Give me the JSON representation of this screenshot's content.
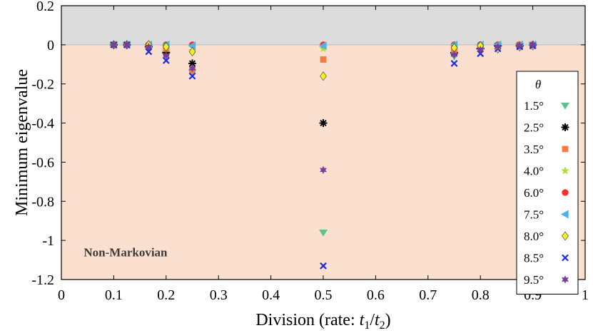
{
  "chart_data": {
    "type": "scatter",
    "title": "",
    "xlabel": "Division (rate: t₁/t₂)",
    "xlabel_parts": {
      "prefix": "Division (rate: ",
      "t": "t",
      "sub1": "1",
      "slash": "/",
      "sub2": "2",
      "suffix": ")"
    },
    "ylabel": "Minimum eigenvalue",
    "xlim": [
      0,
      1
    ],
    "ylim": [
      -1.2,
      0.2
    ],
    "xticks": [
      0,
      0.1,
      0.2,
      0.3,
      0.4,
      0.5,
      0.6,
      0.7,
      0.8,
      0.9,
      1
    ],
    "xtick_labels": [
      "0",
      "0.1",
      "0.2",
      "0.3",
      "0.4",
      "0.5",
      "0.6",
      "0.7",
      "0.8",
      "0.9",
      "1"
    ],
    "yticks": [
      0.2,
      0,
      -0.2,
      -0.4,
      -0.6,
      -0.8,
      -1,
      -1.2
    ],
    "ytick_labels": [
      "0.2",
      "0",
      "-0.2",
      "-0.4",
      "-0.6",
      "-0.8",
      "-1",
      "-1.2"
    ],
    "regions": [
      {
        "name": "markovian",
        "y_range": [
          0,
          0.2
        ],
        "color": "#dcdcdc"
      },
      {
        "name": "non-markovian",
        "y_range": [
          -1.2,
          0
        ],
        "color": "#fbe0cf"
      }
    ],
    "annotations": [
      {
        "text": "Non-Markovian",
        "x": 0.1,
        "y": -1.06
      }
    ],
    "legend": {
      "title": "θ",
      "location": "right"
    },
    "x": [
      0.1,
      0.125,
      0.1667,
      0.2,
      0.25,
      0.5,
      0.75,
      0.8,
      0.8333,
      0.875,
      0.9
    ],
    "series": [
      {
        "name": "1.5°",
        "marker": "triangle-down",
        "color": "#5cc08f",
        "values": [
          0,
          0,
          -0.02,
          -0.05,
          -0.14,
          -0.96,
          -0.06,
          -0.03,
          -0.005,
          -0.005,
          0
        ]
      },
      {
        "name": "2.5°",
        "marker": "asterisk",
        "color": "#000000",
        "values": [
          0,
          0,
          -0.01,
          -0.04,
          -0.095,
          -0.4,
          -0.04,
          -0.02,
          -0.005,
          -0.005,
          0
        ]
      },
      {
        "name": "3.5°",
        "marker": "square",
        "color": "#f47b42",
        "values": [
          0,
          0,
          -0.005,
          -0.02,
          -0.13,
          -0.075,
          -0.025,
          -0.01,
          -0.005,
          0,
          0
        ]
      },
      {
        "name": "4.0°",
        "marker": "star",
        "color": "#a7e02e",
        "values": [
          0,
          0,
          0,
          -0.01,
          -0.03,
          -0.02,
          -0.01,
          -0.005,
          0,
          0,
          0
        ]
      },
      {
        "name": "6.0°",
        "marker": "circle",
        "color": "#f5312b",
        "values": [
          0,
          0,
          0,
          0,
          0,
          0,
          0,
          0,
          0,
          0,
          0
        ]
      },
      {
        "name": "7.5°",
        "marker": "triangle-left",
        "color": "#4fb3e8",
        "values": [
          0,
          0,
          0,
          0,
          -0.005,
          -0.005,
          0,
          0,
          0,
          0,
          0
        ]
      },
      {
        "name": "8.0°",
        "marker": "diamond",
        "color": "#f7ef24",
        "values": [
          0,
          0,
          0,
          -0.01,
          -0.035,
          -0.16,
          -0.015,
          -0.005,
          -0.02,
          -0.01,
          -0.005
        ]
      },
      {
        "name": "8.5°",
        "marker": "x",
        "color": "#1a2ee0",
        "values": [
          0,
          0,
          -0.035,
          -0.08,
          -0.16,
          -1.13,
          -0.095,
          -0.045,
          -0.02,
          -0.01,
          -0.005
        ]
      },
      {
        "name": "9.5°",
        "marker": "hexagram",
        "color": "#7b3d9b",
        "values": [
          0,
          0,
          -0.01,
          -0.055,
          -0.12,
          -0.64,
          -0.05,
          -0.025,
          -0.01,
          -0.005,
          0
        ]
      }
    ]
  }
}
